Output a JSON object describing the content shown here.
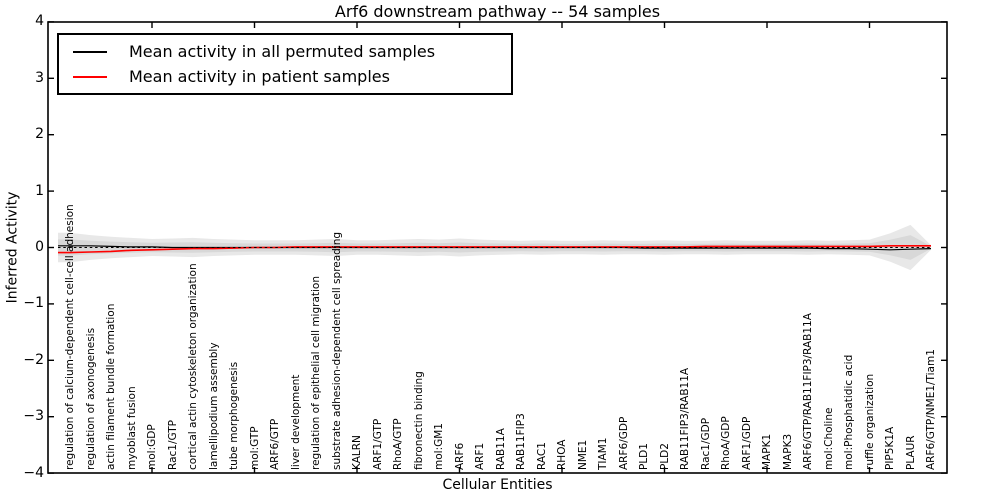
{
  "chart_data": {
    "type": "line",
    "title": "Arf6 downstream pathway -- 54 samples",
    "xlabel": "Cellular Entities",
    "ylabel": "Inferred Activity",
    "ylim": [
      -4,
      4
    ],
    "ytick_labels": [
      "4",
      "3",
      "2",
      "1",
      "0",
      "−1",
      "−2",
      "−3",
      "−4"
    ],
    "ytick_values": [
      4,
      3,
      2,
      1,
      0,
      -1,
      -2,
      -3,
      -4
    ],
    "grid": false,
    "legend_position": "upper left",
    "categories": [
      "regulation of calcium-dependent cell-cell adhesion",
      "regulation of axonogenesis",
      "actin filament bundle formation",
      "myoblast fusion",
      "mol:GDP",
      "Rac1/GTP",
      "cortical actin cytoskeleton organization",
      "lamellipodium assembly",
      "tube morphogenesis",
      "mol:GTP",
      "ARF6/GTP",
      "liver development",
      "regulation of epithelial cell migration",
      "substrate adhesion-dependent cell spreading",
      "KALRN",
      "ARF1/GTP",
      "RhoA/GTP",
      "fibronectin binding",
      "mol:GM1",
      "ARF6",
      "ARF1",
      "RAB11A",
      "RAB11FIP3",
      "RAC1",
      "RHOA",
      "NME1",
      "TIAM1",
      "ARF6/GDP",
      "PLD1",
      "PLD2",
      "RAB11FIP3/RAB11A",
      "Rac1/GDP",
      "RhoA/GDP",
      "ARF1/GDP",
      "MAPK1",
      "MAPK3",
      "ARF6/GTP/RAB11FIP3/RAB11A",
      "mol:Choline",
      "mol:Phosphatidic acid",
      "ruffle organization",
      "PIP5K1A",
      "PLAUR",
      "ARF6/GTP/NME1/Tiam1"
    ],
    "series": [
      {
        "name": "Mean activity in all permuted samples",
        "color": "#000000",
        "style": "solid",
        "values": [
          0.03,
          0.03,
          0.02,
          0.01,
          0.01,
          0.0,
          0.0,
          0.0,
          0.0,
          0.0,
          0.0,
          0.0,
          0.0,
          0.0,
          0.0,
          0.0,
          0.0,
          0.0,
          0.0,
          0.0,
          0.0,
          0.0,
          0.0,
          0.0,
          0.0,
          0.0,
          0.0,
          0.0,
          -0.01,
          -0.01,
          -0.01,
          -0.01,
          -0.01,
          -0.01,
          -0.01,
          -0.01,
          -0.01,
          -0.02,
          -0.02,
          -0.03,
          -0.04,
          -0.03,
          -0.02
        ]
      },
      {
        "name": "Mean activity in patient samples",
        "color": "#ff0000",
        "style": "solid",
        "values": [
          -0.09,
          -0.08,
          -0.07,
          -0.05,
          -0.04,
          -0.03,
          -0.02,
          -0.02,
          -0.01,
          0.0,
          0.0,
          0.01,
          0.01,
          0.01,
          0.01,
          0.01,
          0.01,
          0.01,
          0.01,
          0.01,
          0.01,
          0.01,
          0.01,
          0.01,
          0.01,
          0.01,
          0.01,
          0.01,
          0.01,
          0.01,
          0.01,
          0.02,
          0.02,
          0.02,
          0.02,
          0.02,
          0.02,
          0.02,
          0.02,
          0.02,
          0.03,
          0.03,
          0.03
        ]
      }
    ],
    "zero_reference_line": {
      "value": 0,
      "style": "dashed",
      "color": "#000000"
    },
    "band": {
      "name": "permuted-samples-spread",
      "center": 0,
      "outer_color": "#e8e8e8",
      "inner_color": "#d8d8d8",
      "inner_fraction": 0.55,
      "half_width": [
        0.26,
        0.22,
        0.19,
        0.17,
        0.15,
        0.16,
        0.17,
        0.15,
        0.14,
        0.13,
        0.13,
        0.13,
        0.14,
        0.15,
        0.13,
        0.13,
        0.14,
        0.15,
        0.14,
        0.16,
        0.14,
        0.13,
        0.12,
        0.13,
        0.12,
        0.12,
        0.13,
        0.12,
        0.12,
        0.13,
        0.12,
        0.12,
        0.13,
        0.12,
        0.12,
        0.12,
        0.13,
        0.12,
        0.13,
        0.14,
        0.25,
        0.4,
        0.04
      ]
    }
  },
  "colors": {
    "frame": "#000000",
    "background": "#ffffff",
    "text": "#000000"
  }
}
